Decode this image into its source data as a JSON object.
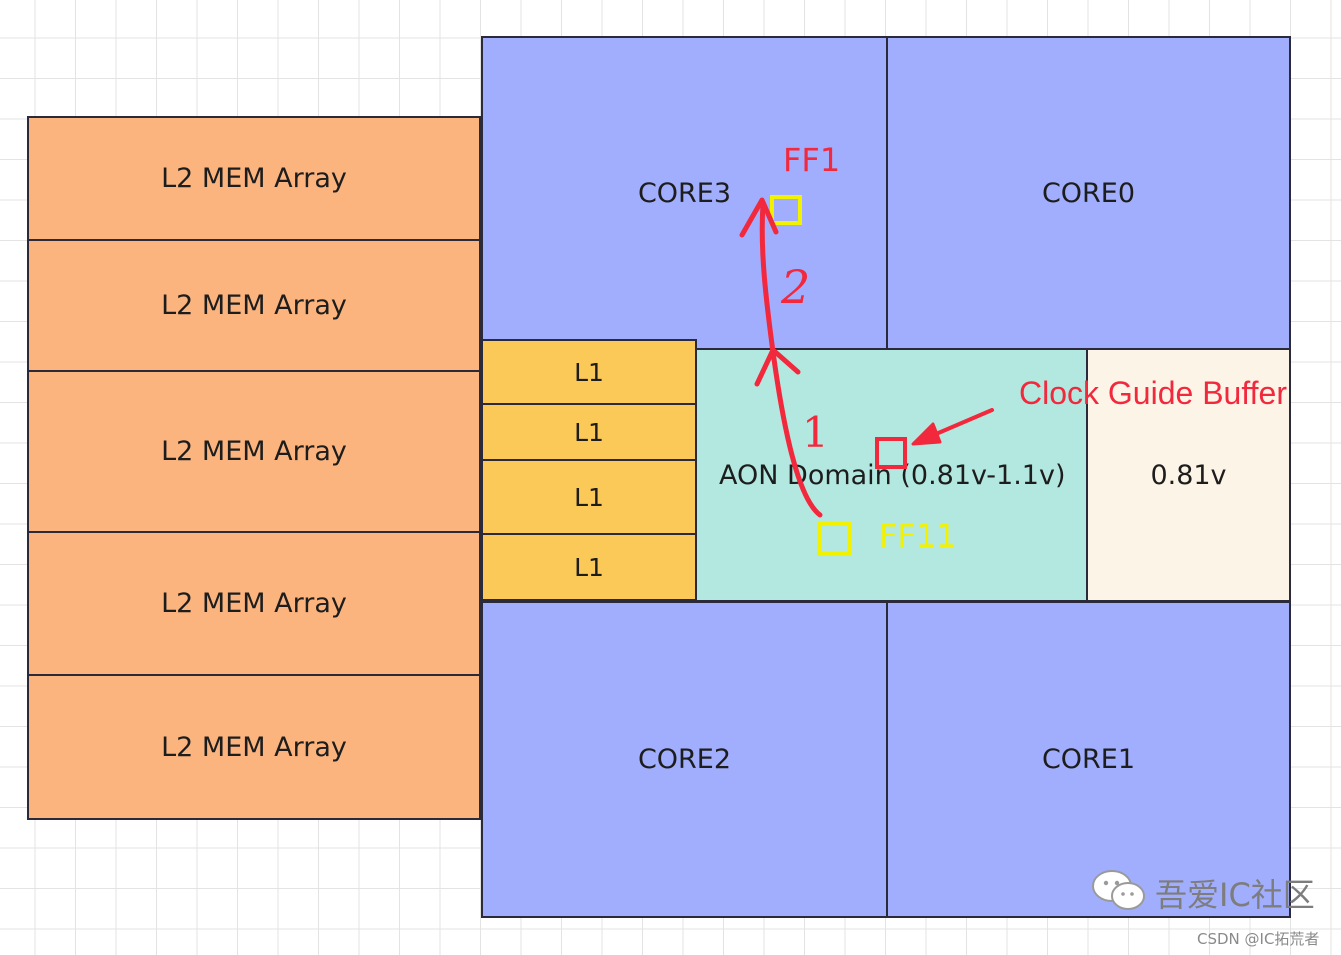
{
  "l2_blocks": [
    "L2 MEM Array",
    "L2 MEM Array",
    "L2 MEM Array",
    "L2 MEM Array",
    "L2 MEM Array"
  ],
  "l1_blocks": [
    "L1",
    "L1",
    "L1",
    "L1"
  ],
  "cores": {
    "core3": "CORE3",
    "core0": "CORE0",
    "core2": "CORE2",
    "core1": "CORE1"
  },
  "aon": {
    "label": "AON Domain (0.81v-1.1v)",
    "voltage_label": "0.81v"
  },
  "annotations": {
    "ff1": "FF1",
    "ff11": "FF11",
    "clock_guide_buffer": "Clock Guide Buffer",
    "step1": "1",
    "step2": "2"
  },
  "watermark": {
    "brand": "吾爱IC社区",
    "credit": "CSDN @IC拓荒者"
  },
  "colors": {
    "l2_mem": "#fbb47e",
    "l1": "#fbc957",
    "core": "#a1aefd",
    "aon_domain": "#b3e8e0",
    "voltage_region": "#fdf4e8",
    "annotation_red": "#f2283c",
    "flipflop_yellow": "#f2f200"
  }
}
